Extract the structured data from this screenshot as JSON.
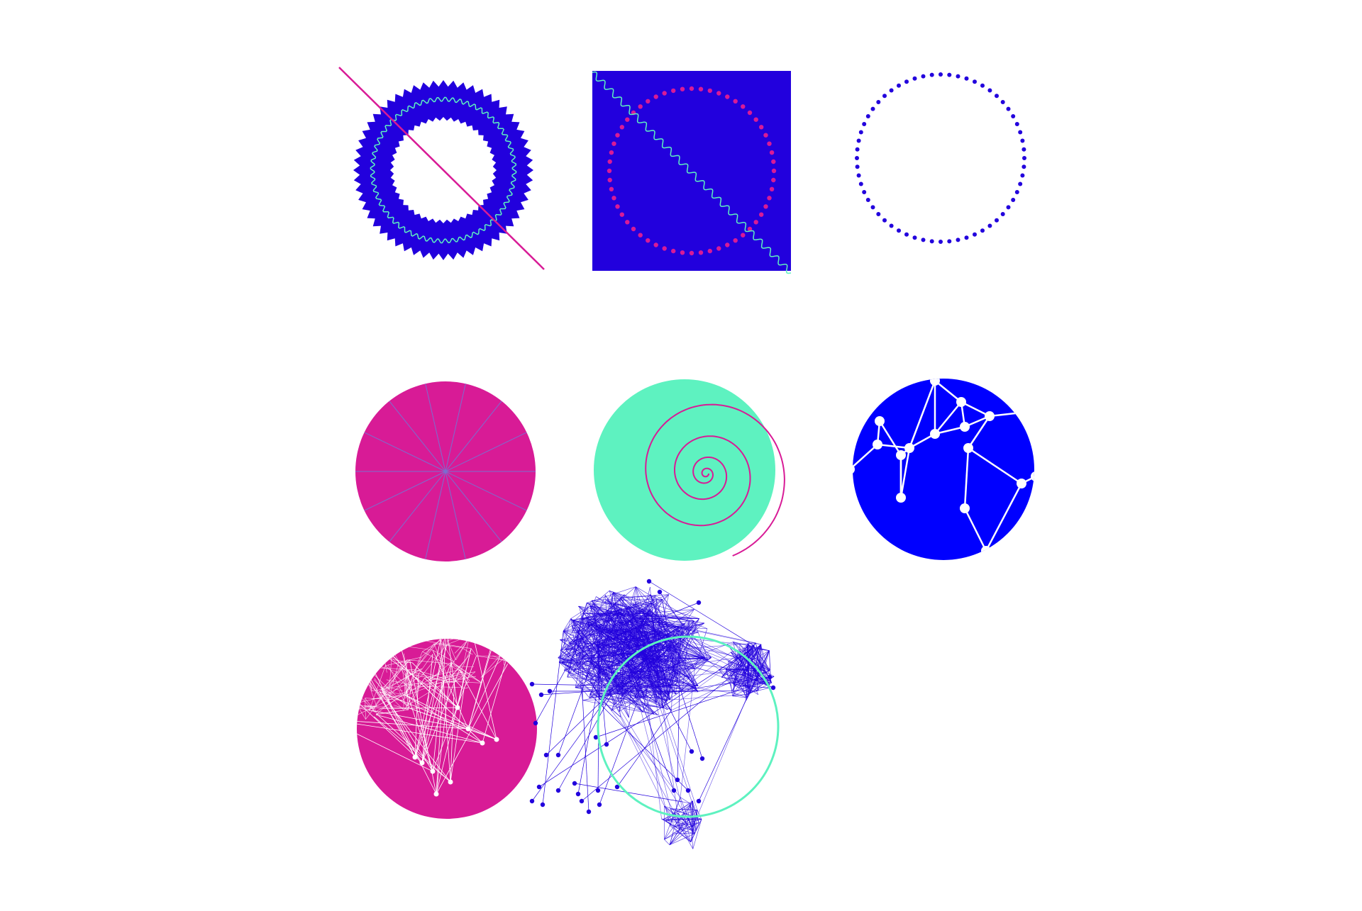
{
  "colors": {
    "blue": "#2200dd",
    "bright_blue": "#0000ff",
    "magenta": "#d81b96",
    "mint": "#5ef2c0",
    "white": "#ffffff"
  },
  "tiles": [
    {
      "id": "gear-ring",
      "description_icon": "gear-ring-icon"
    },
    {
      "id": "dotted-circle-square",
      "description_icon": "dotted-circle-icon"
    },
    {
      "id": "dot-ring",
      "description_icon": "dot-ring-icon"
    },
    {
      "id": "pie-spokes",
      "description_icon": "pie-spokes-icon"
    },
    {
      "id": "spiral-disc",
      "description_icon": "spiral-icon"
    },
    {
      "id": "network-blue-disc",
      "description_icon": "network-icon"
    },
    {
      "id": "network-pink-disc",
      "description_icon": "network-icon"
    },
    {
      "id": "network-cloud",
      "description_icon": "network-cloud-icon"
    }
  ]
}
